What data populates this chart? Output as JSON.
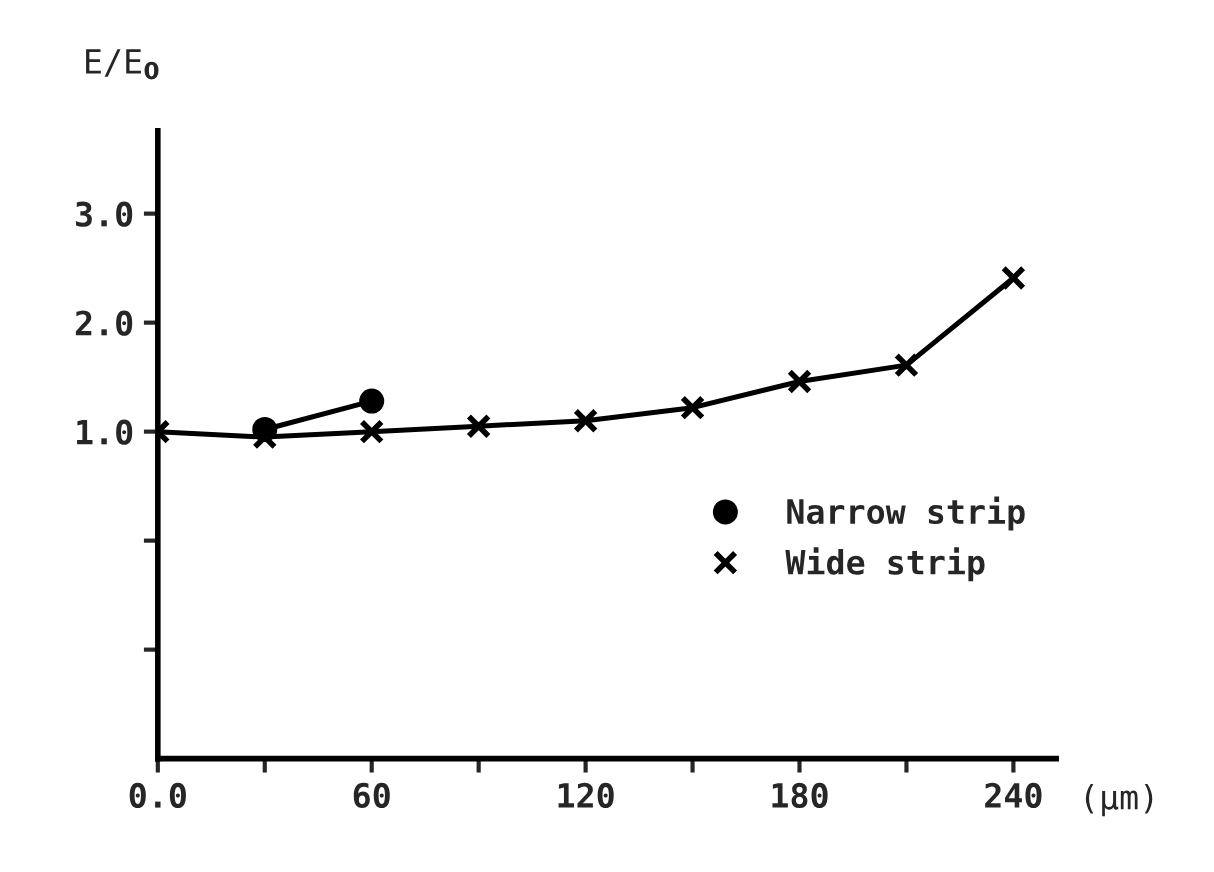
{
  "chart_data": {
    "type": "line",
    "ylabel": "E/E$_{0}$",
    "xlabel": "(μm)",
    "series": [
      {
        "name": "Narrow strip",
        "color": "#000000",
        "marker": "circle",
        "x": [
          30,
          60
        ],
        "values": [
          1.02,
          1.28
        ]
      },
      {
        "name": "Wide strip",
        "color": "#000000",
        "marker": "cross",
        "x": [
          0,
          30,
          60,
          90,
          120,
          150,
          180,
          210,
          240
        ],
        "values": [
          1.0,
          0.95,
          1.0,
          1.05,
          1.1,
          1.22,
          1.46,
          1.61,
          2.41
        ]
      }
    ],
    "xlim": [
      0,
      252
    ],
    "ylim": [
      -2,
      3.76
    ],
    "xticks": [
      {
        "value": 0,
        "label": "0.0"
      },
      {
        "value": 30,
        "label": null
      },
      60,
      {
        "value": 90,
        "label": null
      },
      120,
      {
        "value": 150,
        "label": null
      },
      180,
      {
        "value": 210,
        "label": null
      },
      240
    ],
    "yticks": [
      {
        "value": -1,
        "label": null
      },
      {
        "value": 0,
        "label": null
      },
      {
        "value": 1,
        "label": "1.0"
      },
      {
        "value": 2,
        "label": "2.0"
      },
      {
        "value": 3,
        "label": "3.0"
      }
    ],
    "legend": "right",
    "grid": false,
    "line_style": "solid"
  }
}
